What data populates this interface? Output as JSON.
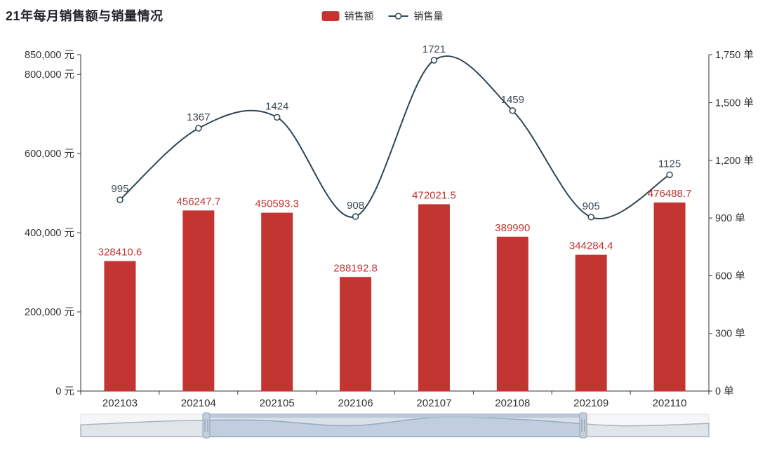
{
  "title": "21年每月销售额与销量情况",
  "legend": {
    "bar_label": "销售额",
    "line_label": "销售量"
  },
  "chart_data": {
    "type": "bar+line",
    "categories": [
      "202103",
      "202104",
      "202105",
      "202106",
      "202107",
      "202108",
      "202109",
      "202110"
    ],
    "series": [
      {
        "name": "销售额",
        "type": "bar",
        "axis": "left",
        "unit": "元",
        "color": "#c23531",
        "values": [
          328410.6,
          456247.7,
          450593.3,
          288192.8,
          472021.5,
          389990,
          344284.4,
          476488.7
        ],
        "labels": [
          "328410.6",
          "456247.7",
          "450593.3",
          "288192.8",
          "472021.5",
          "389990",
          "344284.4",
          "476488.7"
        ]
      },
      {
        "name": "销售量",
        "type": "line",
        "axis": "right",
        "unit": "单",
        "color": "#2f4554",
        "values": [
          995,
          1367,
          1424,
          908,
          1721,
          1459,
          905,
          1125
        ],
        "labels": [
          "995",
          "1367",
          "1424",
          "908",
          "1721",
          "1459",
          "905",
          "1125"
        ]
      }
    ],
    "y_left": {
      "max": 850000,
      "unit": "元",
      "ticks": [
        {
          "value": 0,
          "label": "0 元"
        },
        {
          "value": 200000,
          "label": "200,000 元"
        },
        {
          "value": 400000,
          "label": "400,000 元"
        },
        {
          "value": 600000,
          "label": "600,000 元"
        },
        {
          "value": 800000,
          "label": "800,000 元"
        },
        {
          "value": 850000,
          "label": "850,000 元"
        }
      ]
    },
    "y_right": {
      "max": 1750,
      "unit": "单",
      "ticks": [
        {
          "value": 0,
          "label": "0 单"
        },
        {
          "value": 300,
          "label": "300 单"
        },
        {
          "value": 600,
          "label": "600 单"
        },
        {
          "value": 900,
          "label": "900 单"
        },
        {
          "value": 1200,
          "label": "1,200 单"
        },
        {
          "value": 1500,
          "label": "1,500 单"
        },
        {
          "value": 1750,
          "label": "1,750 单"
        }
      ]
    },
    "slider": {
      "start_pct": 20,
      "end_pct": 80
    },
    "grid": true,
    "legend_position": "top-center"
  },
  "colors": {
    "bar": "#c23531",
    "line": "#2f4554",
    "bar_label": "#c23531",
    "line_label": "#3b4a54",
    "axis": "#333333",
    "axis_text": "#333333",
    "slider_track": "#f5f6f8",
    "slider_shadow": "#e0e5ea",
    "slider_shadow_line": "#aab4bf",
    "slider_selected_shadow": "#cfdbeb",
    "slider_selected_line": "#8fa6c4",
    "slider_window": "rgba(167,183,204,0.35)",
    "slider_handle": "#c5cfdb",
    "slider_handle_border": "#93a2b5"
  }
}
